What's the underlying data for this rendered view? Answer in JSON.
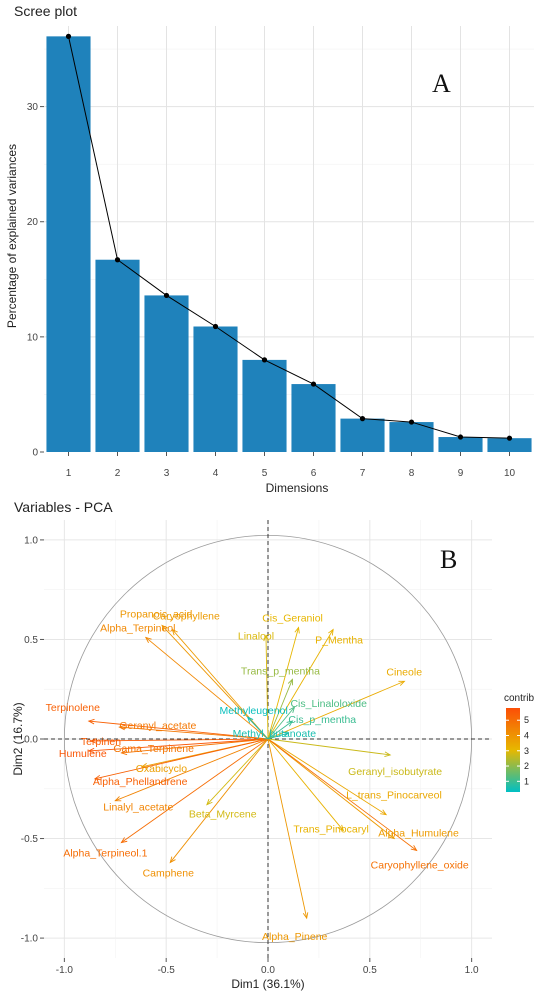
{
  "chart_data": [
    {
      "type": "bar",
      "title": "Scree plot",
      "panel_label": "A",
      "xlabel": "Dimensions",
      "ylabel": "Percentage of explained variances",
      "categories": [
        "1",
        "2",
        "3",
        "4",
        "5",
        "6",
        "7",
        "8",
        "9",
        "10"
      ],
      "values": [
        36.1,
        16.7,
        13.6,
        10.9,
        8.0,
        5.9,
        2.9,
        2.6,
        1.3,
        1.2
      ],
      "line_overlay": true,
      "ylim": [
        0,
        37
      ],
      "yticks": [
        0,
        10,
        20,
        30
      ],
      "grid": true,
      "colors": {
        "bar": "#1f82bb",
        "line": "#000000"
      }
    },
    {
      "type": "scatter",
      "title": "Variables - PCA",
      "panel_label": "B",
      "xlabel": "Dim1 (36.1%)",
      "ylabel": "Dim2 (16.7%)",
      "xlim": [
        -1.1,
        1.1
      ],
      "ylim": [
        -1.1,
        1.1
      ],
      "xticks": [
        "-1.0",
        "-0.5",
        "0.0",
        "0.5",
        "1.0"
      ],
      "yticks": [
        "-1.0",
        "-0.5",
        "0.0",
        "0.5",
        "1.0"
      ],
      "grid": true,
      "legend": {
        "title": "contrib",
        "ticks": [
          "1",
          "2",
          "3",
          "4",
          "5"
        ],
        "range": [
          0.3,
          5.8
        ],
        "placement": "right",
        "colors": [
          "#00bfc4",
          "#e7b800",
          "#fc4e07"
        ]
      },
      "variables": [
        {
          "name": "Propanoic_acid",
          "x": -0.52,
          "y": 0.57,
          "contrib": 3.9
        },
        {
          "name": "Caryophyllene",
          "x": -0.47,
          "y": 0.55,
          "contrib": 3.8
        },
        {
          "name": "Alpha_Terpineol",
          "x": -0.6,
          "y": 0.51,
          "contrib": 4.3
        },
        {
          "name": "Linalool",
          "x": -0.01,
          "y": 0.52,
          "contrib": 2.9
        },
        {
          "name": "Cis_Geraniol",
          "x": 0.15,
          "y": 0.56,
          "contrib": 3.1
        },
        {
          "name": "P_Mentha",
          "x": 0.32,
          "y": 0.55,
          "contrib": 3.2
        },
        {
          "name": "Cineole",
          "x": 0.67,
          "y": 0.29,
          "contrib": 3.4
        },
        {
          "name": "Trans_p_mentha",
          "x": 0.12,
          "y": 0.3,
          "contrib": 2.1
        },
        {
          "name": "Cis_Linaloloxide",
          "x": 0.13,
          "y": 0.16,
          "contrib": 1.2
        },
        {
          "name": "Cis_p_mentha",
          "x": 0.12,
          "y": 0.09,
          "contrib": 1.0
        },
        {
          "name": "Methyleugenol",
          "x": -0.1,
          "y": 0.11,
          "contrib": 0.4
        },
        {
          "name": "Methyl_butanoate",
          "x": 0.1,
          "y": 0.03,
          "contrib": 0.6
        },
        {
          "name": "Terpinolene",
          "x": -0.88,
          "y": 0.09,
          "contrib": 5.3
        },
        {
          "name": "Geranyl_acetate",
          "x": -0.73,
          "y": 0.06,
          "contrib": 4.7
        },
        {
          "name": "Terpinen",
          "x": -0.87,
          "y": -0.01,
          "contrib": 5.4
        },
        {
          "name": "Humulene",
          "x": -0.88,
          "y": -0.06,
          "contrib": 5.6
        },
        {
          "name": "Gama_Terpinene",
          "x": -0.72,
          "y": -0.07,
          "contrib": 4.8
        },
        {
          "name": "Oxabicyclo",
          "x": -0.62,
          "y": -0.14,
          "contrib": 3.7
        },
        {
          "name": "Alpha_Phellandrene",
          "x": -0.85,
          "y": -0.2,
          "contrib": 5.3
        },
        {
          "name": "Linalyl_acetate",
          "x": -0.75,
          "y": -0.31,
          "contrib": 4.4
        },
        {
          "name": "Alpha_Terpineol.1",
          "x": -0.72,
          "y": -0.52,
          "contrib": 5.0
        },
        {
          "name": "Beta_Myrcene",
          "x": -0.3,
          "y": -0.33,
          "contrib": 2.8
        },
        {
          "name": "Camphene",
          "x": -0.48,
          "y": -0.62,
          "contrib": 4.1
        },
        {
          "name": "Geranyl_isobutyrate",
          "x": 0.6,
          "y": -0.08,
          "contrib": 2.7
        },
        {
          "name": "L_trans_Pinocarveol",
          "x": 0.58,
          "y": -0.38,
          "contrib": 3.5
        },
        {
          "name": "Alpha_Humulene",
          "x": 0.62,
          "y": -0.5,
          "contrib": 3.8
        },
        {
          "name": "Trans_Pinocaryl",
          "x": 0.37,
          "y": -0.46,
          "contrib": 3.2
        },
        {
          "name": "Caryophyllene_oxide",
          "x": 0.73,
          "y": -0.56,
          "contrib": 4.9
        },
        {
          "name": "Alpha_Pinene",
          "x": 0.19,
          "y": -0.9,
          "contrib": 3.9
        }
      ]
    }
  ]
}
